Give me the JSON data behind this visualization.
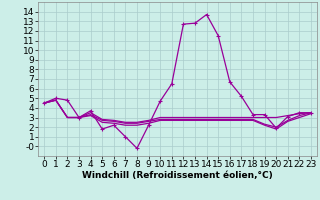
{
  "xlabel": "Windchill (Refroidissement éolien,°C)",
  "bg_color": "#cceee8",
  "grid_color": "#aacccc",
  "line_color": "#990099",
  "x": [
    0,
    1,
    2,
    3,
    4,
    5,
    6,
    7,
    8,
    9,
    10,
    11,
    12,
    13,
    14,
    15,
    16,
    17,
    18,
    19,
    20,
    21,
    22,
    23
  ],
  "lines": [
    [
      4.5,
      5.0,
      4.8,
      3.0,
      3.7,
      1.8,
      2.2,
      1.0,
      -0.2,
      2.2,
      4.7,
      6.5,
      12.7,
      12.8,
      13.7,
      11.5,
      6.7,
      5.2,
      3.3,
      3.3,
      1.9,
      3.1,
      3.5,
      3.5
    ],
    [
      4.5,
      4.8,
      3.0,
      3.0,
      3.5,
      2.8,
      2.7,
      2.5,
      2.5,
      2.7,
      3.0,
      3.0,
      3.0,
      3.0,
      3.0,
      3.0,
      3.0,
      3.0,
      3.0,
      3.0,
      3.0,
      3.2,
      3.4,
      3.5
    ],
    [
      4.5,
      4.8,
      3.0,
      3.0,
      3.3,
      2.7,
      2.6,
      2.4,
      2.4,
      2.6,
      2.8,
      2.8,
      2.8,
      2.8,
      2.8,
      2.8,
      2.8,
      2.8,
      2.8,
      2.3,
      2.0,
      2.7,
      3.2,
      3.5
    ],
    [
      4.5,
      4.8,
      3.0,
      3.0,
      3.2,
      2.5,
      2.4,
      2.2,
      2.2,
      2.4,
      2.7,
      2.7,
      2.7,
      2.7,
      2.7,
      2.7,
      2.7,
      2.7,
      2.7,
      2.2,
      1.8,
      2.6,
      3.0,
      3.4
    ]
  ],
  "has_markers": [
    true,
    false,
    false,
    false
  ],
  "ylim": [
    -1,
    15
  ],
  "yticks": [
    0,
    1,
    2,
    3,
    4,
    5,
    6,
    7,
    8,
    9,
    10,
    11,
    12,
    13,
    14
  ],
  "ytick_labels": [
    "-0",
    "1",
    "2",
    "3",
    "4",
    "5",
    "6",
    "7",
    "8",
    "9",
    "10",
    "11",
    "12",
    "13",
    "14"
  ],
  "xticks": [
    0,
    1,
    2,
    3,
    4,
    5,
    6,
    7,
    8,
    9,
    10,
    11,
    12,
    13,
    14,
    15,
    16,
    17,
    18,
    19,
    20,
    21,
    22,
    23
  ],
  "marker": "+",
  "markersize": 3,
  "markeredgewidth": 0.8,
  "linewidth": 0.9,
  "font_size": 6.5,
  "xlabel_fontsize": 6.5,
  "xlabel_fontweight": "bold"
}
